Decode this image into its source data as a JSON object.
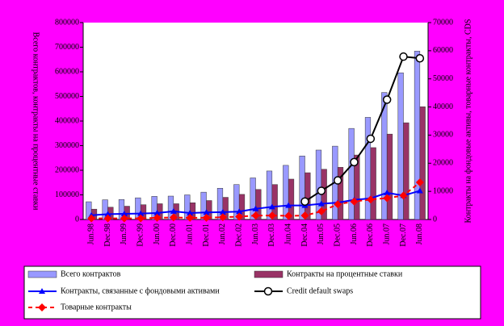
{
  "chart_data": {
    "type": "bar_line",
    "y_label": "Всего контрактов, контракты на процентные ставки",
    "y2_label": "Контракты на фондовые активы, товарные контракты, CDS",
    "categories": [
      "Jun.98",
      "Dec.98",
      "Jun.99",
      "Dec.99",
      "Jun.00",
      "Dec.00",
      "Jun.01",
      "Dec.01",
      "Jun.02",
      "Dec.02",
      "Jun.03",
      "Dec.03",
      "Jun.04",
      "Dec.04",
      "Jun.05",
      "Dec.05",
      "Jun.06",
      "Dec.06",
      "Jun.07",
      "Dec.07",
      "Jun.08"
    ],
    "ylim": [
      0,
      800000
    ],
    "yticks": [
      0,
      100000,
      200000,
      300000,
      400000,
      500000,
      600000,
      700000,
      800000
    ],
    "y2lim": [
      0,
      70000
    ],
    "y2ticks": [
      0,
      10000,
      20000,
      30000,
      40000,
      50000,
      60000,
      70000
    ],
    "series": [
      {
        "name": "Всего контрактов",
        "kind": "bar",
        "color": "#9999ff",
        "values": [
          72000,
          80000,
          81000,
          88000,
          94000,
          95000,
          100000,
          111000,
          127000,
          142000,
          169000,
          197000,
          220000,
          258000,
          282000,
          298000,
          370000,
          415000,
          516000,
          596000,
          684000
        ]
      },
      {
        "name": "Контракты на процентные ставки",
        "kind": "bar",
        "color": "#993366",
        "values": [
          42000,
          50000,
          54000,
          60000,
          64000,
          64000,
          68000,
          77000,
          90000,
          102000,
          122000,
          142000,
          164000,
          190000,
          204000,
          212000,
          262000,
          292000,
          347000,
          393000,
          458000
        ]
      },
      {
        "name": "Контракты, связанные с фондовыми активами",
        "kind": "line",
        "axis": "y2",
        "color": "#0000ff",
        "marker": "triangle",
        "values": [
          1500,
          1900,
          2000,
          2100,
          2300,
          2900,
          2300,
          2500,
          2600,
          2800,
          3800,
          4500,
          5000,
          5000,
          5600,
          6000,
          7000,
          7500,
          9500,
          8500,
          10200
        ]
      },
      {
        "name": "Credit default swaps",
        "kind": "line",
        "axis": "y2",
        "color": "#000000",
        "marker": "circle",
        "values": [
          null,
          null,
          null,
          null,
          null,
          null,
          null,
          null,
          null,
          null,
          null,
          null,
          null,
          6400,
          10200,
          13900,
          20400,
          28700,
          42600,
          57900,
          57300
        ]
      },
      {
        "name": "Товарные контракты",
        "kind": "line",
        "axis": "y2",
        "color": "#ff0000",
        "marker": "diamond",
        "dashed": true,
        "values": [
          400,
          400,
          400,
          400,
          600,
          700,
          600,
          600,
          800,
          1000,
          1400,
          1400,
          1300,
          1400,
          2900,
          5400,
          6400,
          7100,
          7600,
          8500,
          13200
        ]
      }
    ]
  }
}
